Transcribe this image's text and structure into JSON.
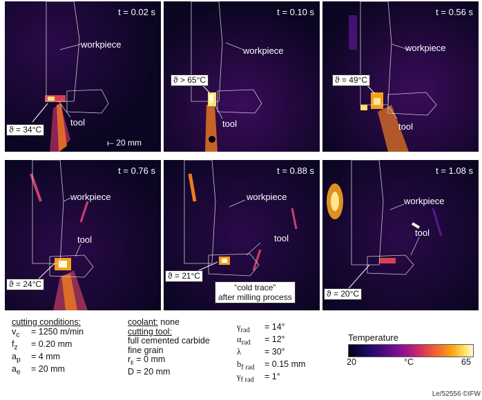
{
  "panels": [
    {
      "time": "t = 0.02 s",
      "workpiece": "workpiece",
      "tool": "tool",
      "temp": "ϑ = 34°C",
      "scale": "⟝ 20 mm"
    },
    {
      "time": "t = 0.10 s",
      "workpiece": "workpiece",
      "tool": "tool",
      "temp": "ϑ > 65°C"
    },
    {
      "time": "t = 0.56 s",
      "workpiece": "workpiece",
      "tool": "tool",
      "temp": "ϑ = 49°C"
    },
    {
      "time": "t = 0.76 s",
      "workpiece": "workpiece",
      "tool": "tool",
      "temp": "ϑ = 24°C"
    },
    {
      "time": "t = 0.88 s",
      "workpiece": "workpiece",
      "tool": "tool",
      "temp": "ϑ = 21°C",
      "note_line1": "“cold trace”",
      "note_line2": "after milling process"
    },
    {
      "time": "t = 1.08 s",
      "workpiece": "workpiece",
      "tool": "tool",
      "temp": "ϑ = 20°C"
    }
  ],
  "cutting_conditions": {
    "title": "cutting conditions:",
    "vc": {
      "sym": "v",
      "sub": "c",
      "val": "= 1250 m/min"
    },
    "fz": {
      "sym": "f",
      "sub": "z",
      "val": "= 0.20 mm"
    },
    "ap": {
      "sym": "a",
      "sub": "p",
      "val": "= 4 mm"
    },
    "ae": {
      "sym": "a",
      "sub": "e",
      "val": "= 20 mm"
    }
  },
  "coolant": {
    "title": "coolant:",
    "value": " none"
  },
  "cutting_tool": {
    "title": "cutting tool:",
    "l1": "full cemented carbide",
    "l2": "fine grain",
    "r_sym": "r",
    "r_sub": "ε",
    "r_val": " = 0 mm",
    "d": "D = 20 mm"
  },
  "angles": [
    {
      "sym": "γ",
      "sub": "rad",
      "val": "= 14°"
    },
    {
      "sym": "α",
      "sub": "rad",
      "val": "= 12°"
    },
    {
      "sym": "λ",
      "sub": "",
      "val": "= 30°"
    },
    {
      "sym": "b",
      "sub": "f rad",
      "val": "= 0.15 mm"
    },
    {
      "sym": "γ",
      "sub": "f rad",
      "val": "= 1°"
    }
  ],
  "legend": {
    "title": "Temperature",
    "min": "20",
    "unit": "°C",
    "max": "65"
  },
  "footer": "Le/52556 ©IFW",
  "colors": {
    "background": "#0a0520",
    "hot": "#fbaa16",
    "mid": "#a0148c"
  }
}
